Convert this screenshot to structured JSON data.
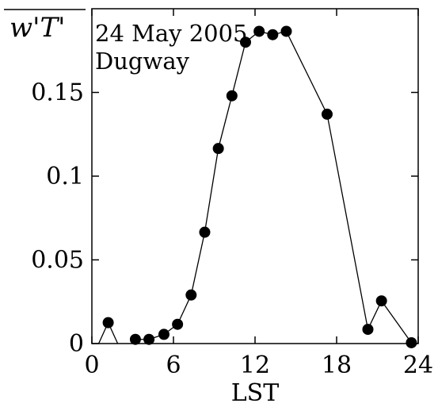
{
  "chart_data": {
    "type": "line",
    "title": "",
    "annotations": [
      "24 May 2005",
      "Dugway"
    ],
    "xlabel": "LST",
    "ylabel": "w'T'",
    "xlim": [
      0,
      24
    ],
    "ylim": [
      0,
      0.2
    ],
    "xticks": [
      0,
      6,
      12,
      18,
      24
    ],
    "xtick_labels": [
      "0",
      "6",
      "12",
      "18",
      "24"
    ],
    "yticks": [
      0,
      0.05,
      0.1,
      0.15
    ],
    "ytick_labels": [
      "0",
      "0.05",
      "0.1",
      "0.15"
    ],
    "grid": false,
    "series": [
      {
        "segments": [
          [
            [
              0.5,
              0
            ],
            [
              1.2,
              0.0125
            ],
            [
              1.9,
              0
            ]
          ],
          [
            [
              3.2,
              0.0025
            ],
            [
              4.2,
              0.0025
            ],
            [
              5.3,
              0.0055
            ],
            [
              6.3,
              0.0115
            ],
            [
              7.3,
              0.029
            ],
            [
              8.3,
              0.0665
            ],
            [
              9.3,
              0.1165
            ],
            [
              10.3,
              0.148
            ],
            [
              11.3,
              0.18
            ],
            [
              12.3,
              0.1865
            ],
            [
              13.3,
              0.1845
            ],
            [
              14.3,
              0.1865
            ],
            [
              17.3,
              0.137
            ],
            [
              20.3,
              0.0085
            ],
            [
              21.3,
              0.0255
            ],
            [
              23.5,
              0.0005
            ]
          ]
        ],
        "color": "#000000"
      }
    ]
  }
}
